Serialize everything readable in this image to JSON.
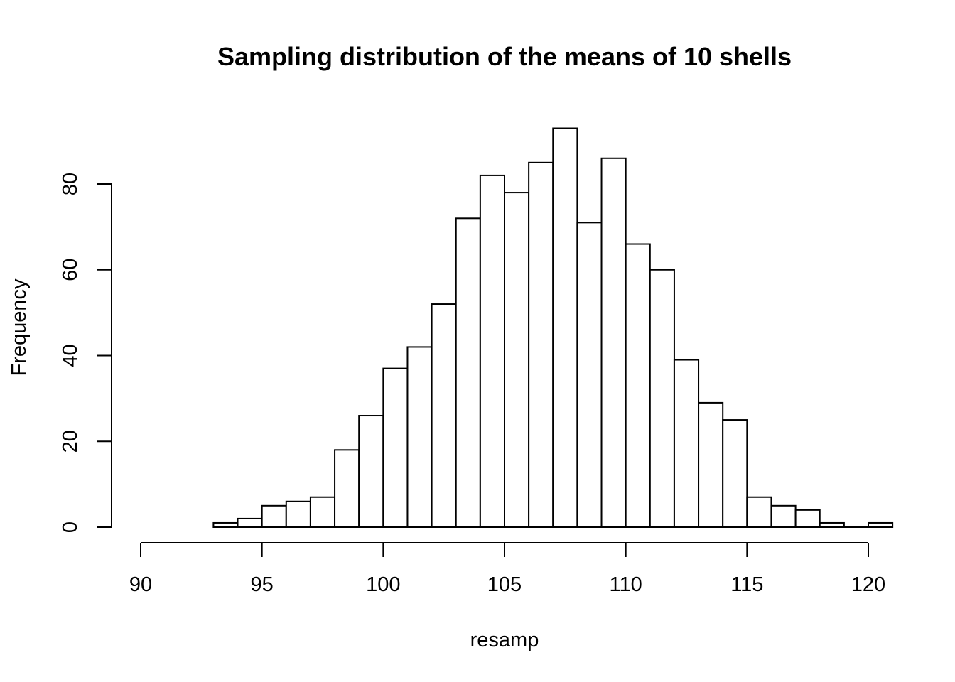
{
  "chart_data": {
    "type": "bar",
    "title": "Sampling distribution of the means of 10 shells",
    "xlabel": "resamp",
    "ylabel": "Frequency",
    "xlim": [
      90,
      120
    ],
    "ylim": [
      0,
      93
    ],
    "x_ticks": [
      90,
      95,
      100,
      105,
      110,
      115,
      120
    ],
    "y_ticks": [
      0,
      20,
      40,
      60,
      80
    ],
    "grid": false,
    "legend": "none",
    "bar_fill": "#ffffff",
    "bar_stroke": "#000000",
    "bins": [
      {
        "start": 93,
        "end": 94,
        "count": 1
      },
      {
        "start": 94,
        "end": 95,
        "count": 2
      },
      {
        "start": 95,
        "end": 96,
        "count": 5
      },
      {
        "start": 96,
        "end": 97,
        "count": 6
      },
      {
        "start": 97,
        "end": 98,
        "count": 7
      },
      {
        "start": 98,
        "end": 99,
        "count": 18
      },
      {
        "start": 99,
        "end": 100,
        "count": 26
      },
      {
        "start": 100,
        "end": 101,
        "count": 37
      },
      {
        "start": 101,
        "end": 102,
        "count": 42
      },
      {
        "start": 102,
        "end": 103,
        "count": 52
      },
      {
        "start": 103,
        "end": 104,
        "count": 72
      },
      {
        "start": 104,
        "end": 105,
        "count": 82
      },
      {
        "start": 105,
        "end": 106,
        "count": 78
      },
      {
        "start": 106,
        "end": 107,
        "count": 85
      },
      {
        "start": 107,
        "end": 108,
        "count": 93
      },
      {
        "start": 108,
        "end": 109,
        "count": 71
      },
      {
        "start": 109,
        "end": 110,
        "count": 86
      },
      {
        "start": 110,
        "end": 111,
        "count": 66
      },
      {
        "start": 111,
        "end": 112,
        "count": 60
      },
      {
        "start": 112,
        "end": 113,
        "count": 39
      },
      {
        "start": 113,
        "end": 114,
        "count": 29
      },
      {
        "start": 114,
        "end": 115,
        "count": 25
      },
      {
        "start": 115,
        "end": 116,
        "count": 7
      },
      {
        "start": 116,
        "end": 117,
        "count": 5
      },
      {
        "start": 117,
        "end": 118,
        "count": 4
      },
      {
        "start": 118,
        "end": 119,
        "count": 1
      },
      {
        "start": 119,
        "end": 120,
        "count": 0
      },
      {
        "start": 120,
        "end": 121,
        "count": 1
      }
    ]
  }
}
